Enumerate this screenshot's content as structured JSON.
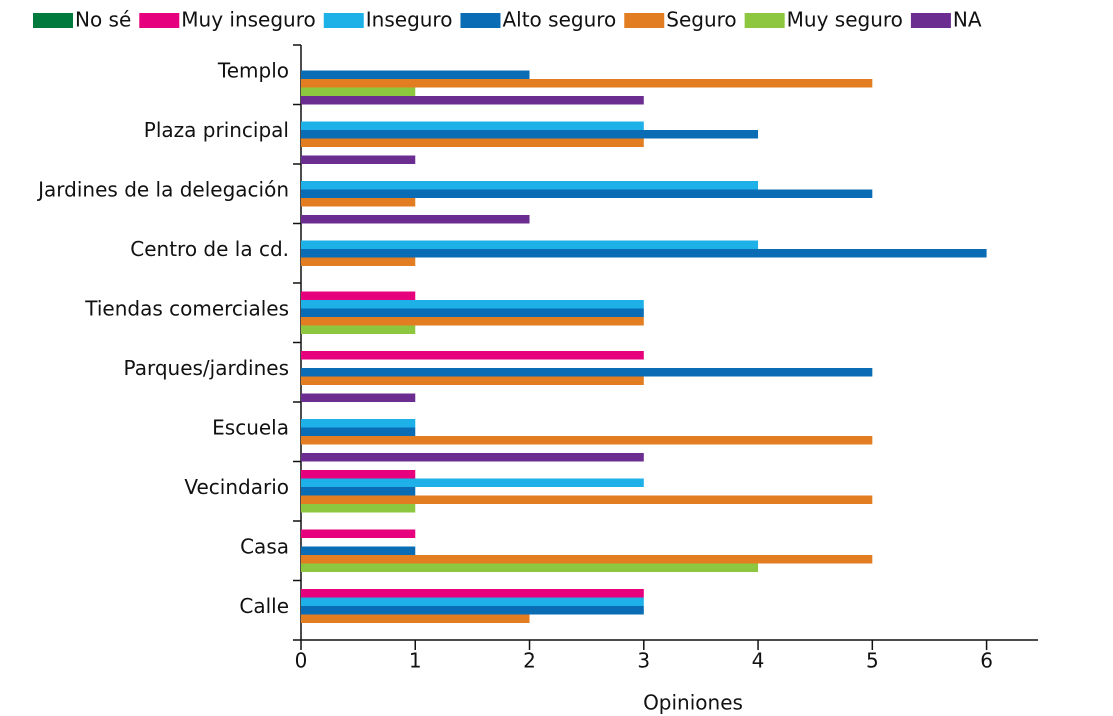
{
  "chart_data": {
    "type": "barh",
    "categories": [
      "Templo",
      "Plaza principal",
      "Jardines de la delegación",
      "Centro de la cd.",
      "Tiendas comerciales",
      "Parques/jardines",
      "Escuela",
      "Vecindario",
      "Casa",
      "Calle"
    ],
    "series": [
      {
        "name": "No sé",
        "color": "#007a3d",
        "values": [
          0,
          0,
          0,
          0,
          0,
          0,
          0,
          0,
          0,
          0
        ]
      },
      {
        "name": "Muy inseguro",
        "color": "#e6007e",
        "values": [
          0,
          0,
          0,
          0,
          1,
          3,
          0,
          1,
          1,
          3
        ]
      },
      {
        "name": "Inseguro",
        "color": "#1eb1e7",
        "values": [
          0,
          3,
          4,
          4,
          3,
          0,
          1,
          3,
          0,
          3
        ]
      },
      {
        "name": "Alto seguro",
        "color": "#0a6cb4",
        "values": [
          2,
          4,
          5,
          6,
          3,
          5,
          1,
          1,
          1,
          3
        ]
      },
      {
        "name": "Seguro",
        "color": "#e37d22",
        "values": [
          5,
          3,
          1,
          1,
          3,
          3,
          5,
          5,
          5,
          2
        ]
      },
      {
        "name": "Muy seguro",
        "color": "#8dc63f",
        "values": [
          1,
          0,
          0,
          0,
          1,
          0,
          0,
          1,
          4,
          0
        ]
      },
      {
        "name": "NA",
        "color": "#6b2d90",
        "values": [
          3,
          1,
          2,
          0,
          0,
          1,
          3,
          0,
          0,
          0
        ]
      }
    ],
    "x_label": "Opiniones",
    "xlim": [
      0,
      6.45
    ],
    "xticks": [
      0,
      1,
      2,
      3,
      4,
      5,
      6
    ],
    "legend": "top",
    "grid": false
  }
}
